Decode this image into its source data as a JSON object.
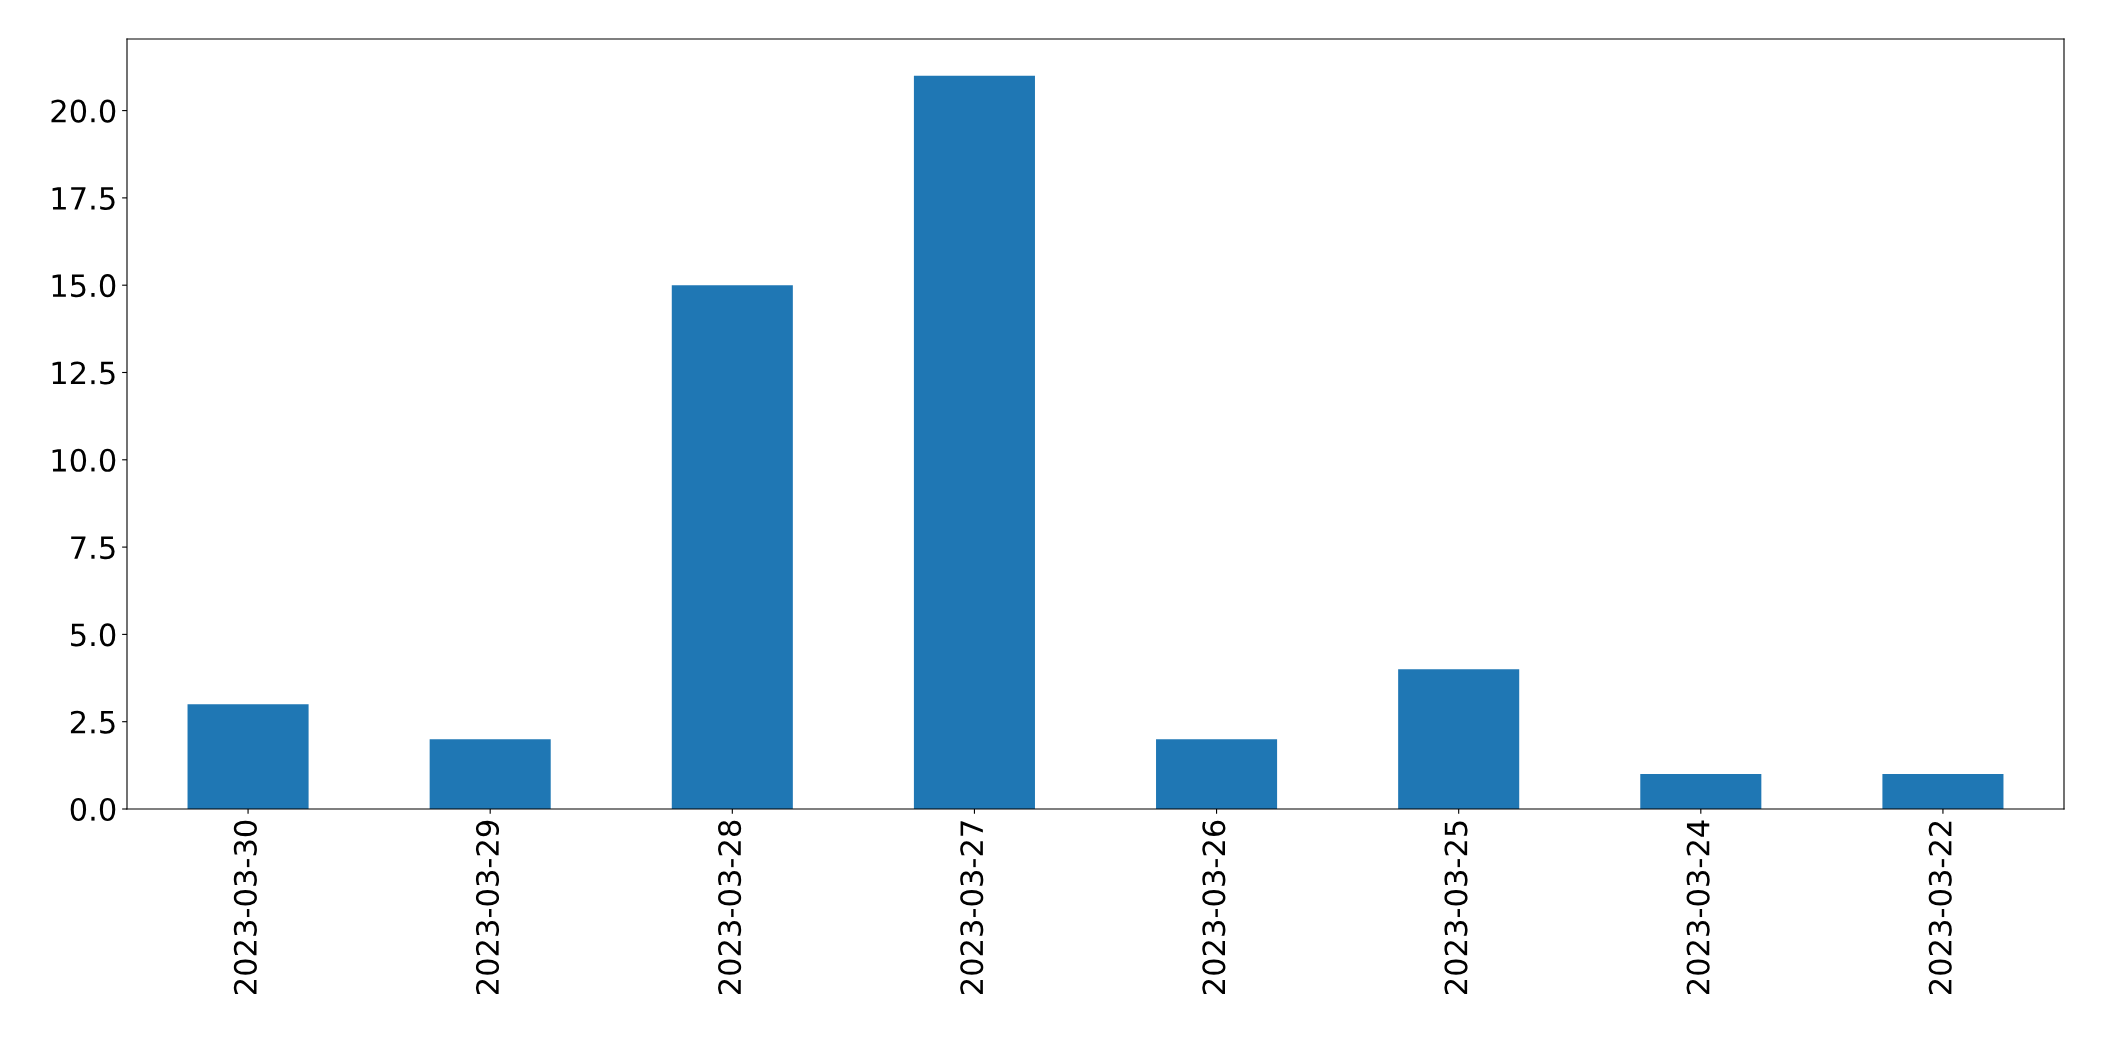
{
  "chart_data": {
    "type": "bar",
    "categories": [
      "2023-03-30",
      "2023-03-29",
      "2023-03-28",
      "2023-03-27",
      "2023-03-26",
      "2023-03-25",
      "2023-03-24",
      "2023-03-22"
    ],
    "values": [
      3,
      2,
      15,
      21,
      2,
      4,
      1,
      1
    ],
    "color": "#1f77b4",
    "ylim": [
      0,
      22.05
    ],
    "yticks": [
      {
        "value": 0,
        "label": "0.0"
      },
      {
        "value": 2.5,
        "label": "2.5"
      },
      {
        "value": 5,
        "label": "5.0"
      },
      {
        "value": 7.5,
        "label": "7.5"
      },
      {
        "value": 10,
        "label": "10.0"
      },
      {
        "value": 12.5,
        "label": "12.5"
      },
      {
        "value": 15,
        "label": "15.0"
      },
      {
        "value": 17.5,
        "label": "17.5"
      },
      {
        "value": 20,
        "label": "20.0"
      }
    ],
    "grid": false
  }
}
